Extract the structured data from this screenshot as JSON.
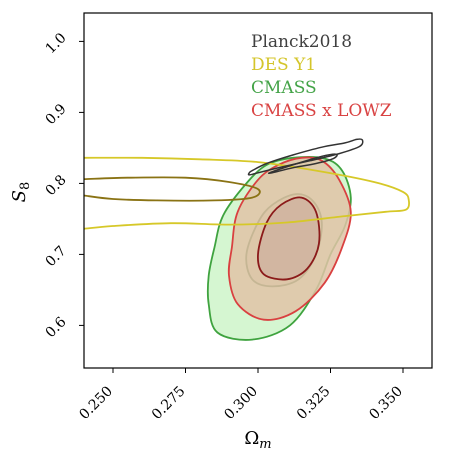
{
  "chart_data": {
    "type": "contour",
    "xlabel": "Ω",
    "xlabel_sub": "m",
    "ylabel": "S",
    "ylabel_sub": "8",
    "xlim": [
      0.24,
      0.36
    ],
    "ylim": [
      0.54,
      1.04
    ],
    "x_ticks": [
      0.25,
      0.275,
      0.3,
      0.325,
      0.35
    ],
    "x_tick_labels": [
      "0.250",
      "0.275",
      "0.300",
      "0.325",
      "0.350"
    ],
    "y_ticks": [
      0.6,
      0.7,
      0.8,
      0.9,
      1.0
    ],
    "y_tick_labels": [
      "0.6",
      "0.7",
      "0.8",
      "0.9",
      "1.0"
    ],
    "grid": false,
    "legend_position": "top-right",
    "series": [
      {
        "name": "Planck2018",
        "color": "#333333",
        "contours": [
          [
            [
              0.298,
              0.818
            ],
            [
              0.303,
              0.828
            ],
            [
              0.312,
              0.84
            ],
            [
              0.322,
              0.851
            ],
            [
              0.33,
              0.857
            ],
            [
              0.334,
              0.862
            ],
            [
              0.336,
              0.861
            ],
            [
              0.335,
              0.852
            ],
            [
              0.328,
              0.842
            ],
            [
              0.318,
              0.832
            ],
            [
              0.308,
              0.823
            ],
            [
              0.3,
              0.815
            ],
            [
              0.297,
              0.812
            ],
            [
              0.297,
              0.815
            ]
          ],
          [
            [
              0.304,
              0.815
            ],
            [
              0.312,
              0.826
            ],
            [
              0.322,
              0.838
            ],
            [
              0.327,
              0.841
            ],
            [
              0.326,
              0.835
            ],
            [
              0.32,
              0.828
            ],
            [
              0.312,
              0.822
            ],
            [
              0.306,
              0.816
            ]
          ]
        ]
      },
      {
        "name": "DES Y1",
        "color": "#d6c828",
        "fill": false,
        "contours": [
          [
            [
              0.24,
              0.836
            ],
            [
              0.26,
              0.836
            ],
            [
              0.28,
              0.834
            ],
            [
              0.3,
              0.83
            ],
            [
              0.32,
              0.818
            ],
            [
              0.34,
              0.802
            ],
            [
              0.35,
              0.788
            ],
            [
              0.352,
              0.776
            ],
            [
              0.351,
              0.763
            ],
            [
              0.344,
              0.76
            ],
            [
              0.33,
              0.754
            ],
            [
              0.31,
              0.745
            ],
            [
              0.29,
              0.742
            ],
            [
              0.27,
              0.744
            ],
            [
              0.25,
              0.74
            ],
            [
              0.24,
              0.736
            ]
          ],
          [
            [
              0.24,
              0.806
            ],
            [
              0.255,
              0.808
            ],
            [
              0.275,
              0.808
            ],
            [
              0.29,
              0.802
            ],
            [
              0.3,
              0.792
            ],
            [
              0.298,
              0.78
            ],
            [
              0.285,
              0.776
            ],
            [
              0.265,
              0.776
            ],
            [
              0.25,
              0.778
            ],
            [
              0.24,
              0.783
            ]
          ]
        ],
        "inner_color": "#8a7314"
      },
      {
        "name": "CMASS",
        "color": "#3fa33f",
        "fill": "#d3f5cf",
        "contours": [
          [
            [
              0.285,
              0.71
            ],
            [
              0.288,
              0.755
            ],
            [
              0.296,
              0.8
            ],
            [
              0.303,
              0.826
            ],
            [
              0.312,
              0.836
            ],
            [
              0.323,
              0.835
            ],
            [
              0.329,
              0.818
            ],
            [
              0.332,
              0.78
            ],
            [
              0.33,
              0.74
            ],
            [
              0.325,
              0.7
            ],
            [
              0.32,
              0.65
            ],
            [
              0.311,
              0.6
            ],
            [
              0.298,
              0.58
            ],
            [
              0.286,
              0.59
            ],
            [
              0.283,
              0.63
            ],
            [
              0.283,
              0.67
            ]
          ],
          [
            [
              0.296,
              0.7
            ],
            [
              0.3,
              0.745
            ],
            [
              0.305,
              0.77
            ],
            [
              0.313,
              0.785
            ],
            [
              0.319,
              0.775
            ],
            [
              0.322,
              0.745
            ],
            [
              0.32,
              0.7
            ],
            [
              0.314,
              0.665
            ],
            [
              0.305,
              0.655
            ],
            [
              0.298,
              0.665
            ]
          ]
        ]
      },
      {
        "name": "CMASS x LOWZ",
        "color": "#d94040",
        "fill": "#e0c3a7",
        "contours": [
          [
            [
              0.291,
              0.71
            ],
            [
              0.293,
              0.76
            ],
            [
              0.3,
              0.805
            ],
            [
              0.307,
              0.826
            ],
            [
              0.315,
              0.836
            ],
            [
              0.322,
              0.832
            ],
            [
              0.328,
              0.805
            ],
            [
              0.332,
              0.76
            ],
            [
              0.329,
              0.71
            ],
            [
              0.323,
              0.66
            ],
            [
              0.313,
              0.62
            ],
            [
              0.302,
              0.608
            ],
            [
              0.293,
              0.63
            ],
            [
              0.29,
              0.67
            ]
          ],
          [
            [
              0.3,
              0.7
            ],
            [
              0.303,
              0.745
            ],
            [
              0.308,
              0.77
            ],
            [
              0.315,
              0.78
            ],
            [
              0.32,
              0.76
            ],
            [
              0.321,
              0.715
            ],
            [
              0.317,
              0.68
            ],
            [
              0.31,
              0.665
            ],
            [
              0.302,
              0.672
            ]
          ]
        ]
      }
    ],
    "legend": [
      {
        "label": "Planck2018",
        "color": "#404040"
      },
      {
        "label": "DES Y1",
        "color": "#d4c52a"
      },
      {
        "label": "CMASS",
        "color": "#43a347"
      },
      {
        "label": "CMASS x LOWZ",
        "color": "#d94343"
      }
    ]
  }
}
